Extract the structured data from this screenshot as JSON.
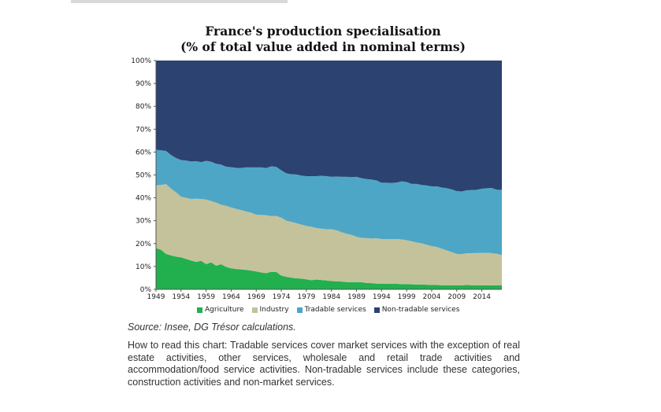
{
  "title_line1": "France's production specialisation",
  "title_line2": "(% of total value added in nominal terms)",
  "source": "Source: Insee, DG Trésor calculations.",
  "note": "How to read this chart: Tradable services cover market services with the exception of real estate activities, other services, wholesale and retail trade activities and accommodation/food service activities. Non-tradable services include these categories, construction activities and non-market services.",
  "chart_data": {
    "type": "area",
    "stacked": true,
    "xlim": [
      1949,
      2018
    ],
    "ylim": [
      0,
      100
    ],
    "ytick_labels": [
      "0%",
      "10%",
      "20%",
      "30%",
      "40%",
      "50%",
      "60%",
      "70%",
      "80%",
      "90%",
      "100%"
    ],
    "xtick_labels": [
      "1949",
      "1954",
      "1959",
      "1964",
      "1969",
      "1974",
      "1979",
      "1984",
      "1989",
      "1994",
      "1999",
      "2004",
      "2009",
      "2014"
    ],
    "xtick_values": [
      1949,
      1954,
      1959,
      1964,
      1969,
      1974,
      1979,
      1984,
      1989,
      1994,
      1999,
      2004,
      2009,
      2014
    ],
    "legend_position": "bottom",
    "x": [
      1949,
      1950,
      1951,
      1952,
      1953,
      1954,
      1955,
      1956,
      1957,
      1958,
      1959,
      1960,
      1961,
      1962,
      1963,
      1964,
      1965,
      1966,
      1967,
      1968,
      1969,
      1970,
      1971,
      1972,
      1973,
      1974,
      1975,
      1976,
      1977,
      1978,
      1979,
      1980,
      1981,
      1982,
      1983,
      1984,
      1985,
      1986,
      1987,
      1988,
      1989,
      1990,
      1991,
      1992,
      1993,
      1994,
      1995,
      1996,
      1997,
      1998,
      1999,
      2000,
      2001,
      2002,
      2003,
      2004,
      2005,
      2006,
      2007,
      2008,
      2009,
      2010,
      2011,
      2012,
      2013,
      2014,
      2015,
      2016,
      2017,
      2018
    ],
    "series": [
      {
        "name": "Agriculture",
        "color": "#22b04f",
        "values": [
          18,
          17.3,
          15.5,
          14.8,
          14.3,
          14,
          13.3,
          12.6,
          12,
          12.5,
          11,
          11.8,
          10.3,
          11,
          9.8,
          9.2,
          8.9,
          8.7,
          8.5,
          8.2,
          7.8,
          7.4,
          7.1,
          7.7,
          7.6,
          6,
          5.5,
          5.1,
          4.8,
          4.7,
          4.4,
          4,
          4.3,
          4.1,
          3.9,
          3.6,
          3.5,
          3.4,
          3.2,
          3.1,
          3.2,
          3.1,
          2.8,
          2.7,
          2.5,
          2.5,
          2.5,
          2.4,
          2.4,
          2.3,
          2.3,
          2.2,
          2.1,
          2.1,
          2,
          1.9,
          1.9,
          1.8,
          1.8,
          1.7,
          1.7,
          1.8,
          1.9,
          1.8,
          1.8,
          1.7,
          1.8,
          1.7,
          1.8,
          1.8
        ]
      },
      {
        "name": "Industry",
        "color": "#c4c29b",
        "values": [
          27.5,
          28.3,
          30.5,
          29.2,
          28.1,
          26.5,
          26.7,
          26.9,
          27.6,
          27,
          28.2,
          26.8,
          27.6,
          26,
          26.7,
          26.6,
          26.3,
          25.9,
          25.5,
          25.3,
          24.8,
          25.1,
          25.3,
          24.3,
          24.5,
          25.3,
          24.5,
          24.4,
          24.1,
          23.6,
          23.3,
          23.3,
          22.5,
          22.4,
          22.4,
          22.7,
          22.3,
          21.6,
          21.1,
          20.7,
          19.8,
          19.4,
          19.6,
          19.5,
          19.8,
          19.5,
          19.4,
          19.6,
          19.6,
          19.5,
          19.2,
          18.8,
          18.4,
          18,
          17.5,
          17,
          16.6,
          16,
          15.2,
          14.6,
          13.8,
          13.6,
          13.9,
          14,
          14.1,
          14.2,
          14.2,
          14.1,
          13.7,
          13.2
        ]
      },
      {
        "name": "Tradable services",
        "color": "#4ea6c6",
        "values": [
          15.5,
          15.2,
          14.5,
          14.7,
          15,
          16,
          16.3,
          16.4,
          16.4,
          16.1,
          17,
          17.2,
          17,
          17.5,
          17.1,
          17.6,
          17.9,
          18.5,
          19.3,
          19.8,
          20.7,
          20.8,
          20.6,
          21.8,
          21.4,
          20.7,
          20.7,
          20.8,
          21.3,
          21.4,
          21.8,
          22.2,
          22.7,
          23.1,
          23.2,
          22.9,
          23.5,
          24.2,
          24.9,
          25.2,
          26.2,
          26.1,
          25.8,
          25.8,
          25.3,
          24.6,
          24.7,
          24.5,
          24.7,
          25.4,
          25.4,
          25.1,
          25.6,
          25.5,
          25.9,
          26.1,
          26.5,
          26.7,
          27.2,
          27.4,
          27.4,
          27.4,
          27.5,
          27.6,
          27.6,
          28.1,
          28.2,
          28.5,
          28,
          28.5
        ]
      },
      {
        "name": "Non-tradable services",
        "color": "#2c4270",
        "values": [
          39,
          39.2,
          39.5,
          41.3,
          42.6,
          43.5,
          43.7,
          44.1,
          44,
          44.4,
          43.8,
          44.2,
          45.1,
          45.5,
          46.4,
          46.6,
          46.9,
          46.9,
          46.7,
          46.7,
          46.7,
          46.7,
          47,
          46.2,
          46.5,
          48,
          49.3,
          49.7,
          49.8,
          50.3,
          50.5,
          50.5,
          50.5,
          50.4,
          50.5,
          50.8,
          50.7,
          50.8,
          50.8,
          51,
          50.8,
          51.4,
          51.8,
          52,
          52.4,
          53.4,
          53.4,
          53.5,
          53.3,
          52.8,
          53.1,
          53.9,
          53.9,
          54.4,
          54.6,
          55,
          55,
          55.5,
          55.8,
          56.3,
          57.1,
          57.2,
          56.7,
          56.6,
          56.5,
          56,
          55.8,
          55.7,
          56.5,
          56.5
        ]
      }
    ]
  }
}
